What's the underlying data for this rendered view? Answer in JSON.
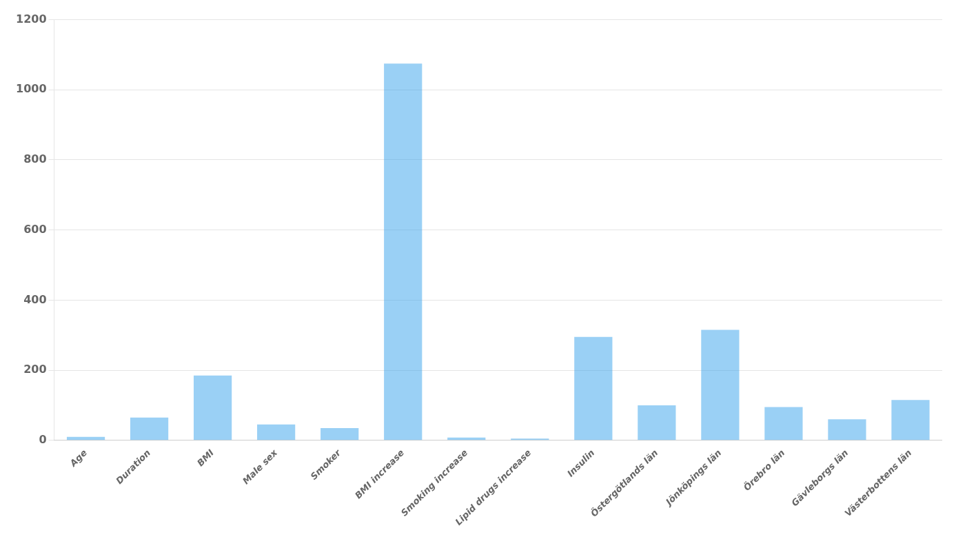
{
  "chart_data": {
    "type": "bar",
    "categories": [
      "Age",
      "Duration",
      "BMI",
      "Male sex",
      "Smoker",
      "BMI increase",
      "Smoking increase",
      "Lipid drugs increase",
      "Insulin",
      "Östergötlands län",
      "Jönköpings län",
      "Örebro län",
      "Gävleborgs län",
      "Västerbottens län"
    ],
    "values": [
      10,
      65,
      185,
      45,
      35,
      1075,
      8,
      5,
      295,
      100,
      315,
      95,
      60,
      115
    ],
    "ylim": [
      0,
      1200
    ],
    "yticks": [
      0,
      200,
      400,
      600,
      800,
      1000,
      1200
    ],
    "grid": true
  }
}
